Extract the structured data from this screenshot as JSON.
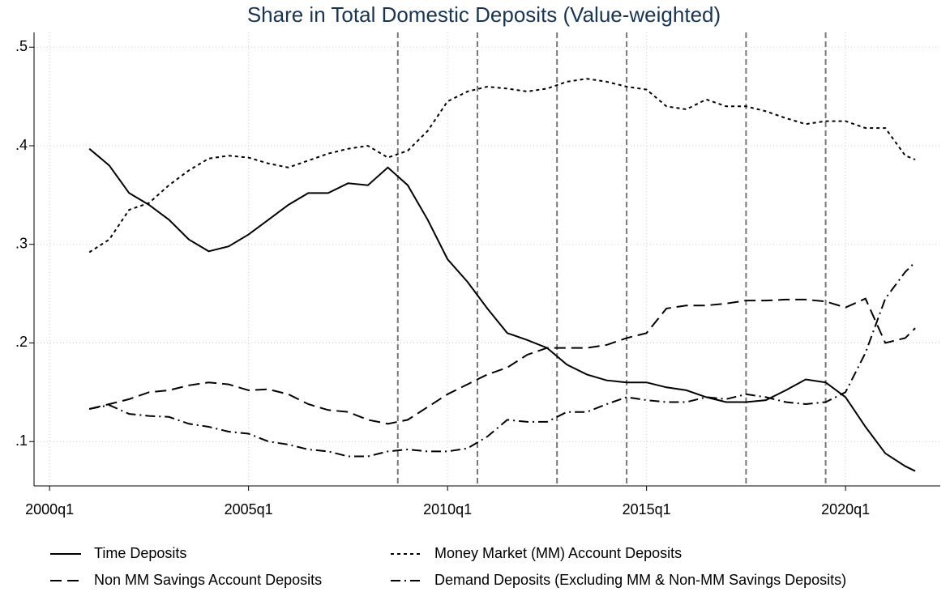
{
  "chart_data": {
    "type": "line",
    "title": "Share in Total Domestic Deposits (Value-weighted)",
    "x": [
      2001.0,
      2001.5,
      2002.0,
      2002.5,
      2003.0,
      2003.5,
      2004.0,
      2004.5,
      2005.0,
      2005.5,
      2006.0,
      2006.5,
      2007.0,
      2007.5,
      2008.0,
      2008.5,
      2009.0,
      2009.5,
      2010.0,
      2010.5,
      2011.0,
      2011.5,
      2012.0,
      2012.5,
      2013.0,
      2013.5,
      2014.0,
      2014.5,
      2015.0,
      2015.5,
      2016.0,
      2016.5,
      2017.0,
      2017.5,
      2018.0,
      2018.5,
      2019.0,
      2019.5,
      2020.0,
      2020.5,
      2021.0,
      2021.5,
      2021.75
    ],
    "series": [
      {
        "name": "Time Deposits",
        "color": "#000000",
        "style": "solid",
        "values": [
          0.397,
          0.38,
          0.352,
          0.34,
          0.325,
          0.305,
          0.293,
          0.298,
          0.31,
          0.325,
          0.34,
          0.352,
          0.352,
          0.362,
          0.36,
          0.378,
          0.36,
          0.325,
          0.285,
          0.262,
          0.235,
          0.21,
          0.203,
          0.195,
          0.178,
          0.168,
          0.162,
          0.16,
          0.16,
          0.155,
          0.152,
          0.145,
          0.14,
          0.14,
          0.142,
          0.152,
          0.163,
          0.16,
          0.145,
          0.115,
          0.088,
          0.075,
          0.07
        ]
      },
      {
        "name": "Money Market (MM) Account Deposits",
        "color": "#000000",
        "style": "short-dash",
        "values": [
          0.292,
          0.305,
          0.335,
          0.342,
          0.36,
          0.375,
          0.387,
          0.39,
          0.388,
          0.382,
          0.378,
          0.385,
          0.392,
          0.397,
          0.4,
          0.388,
          0.395,
          0.415,
          0.445,
          0.455,
          0.46,
          0.458,
          0.455,
          0.458,
          0.465,
          0.468,
          0.465,
          0.46,
          0.457,
          0.44,
          0.437,
          0.447,
          0.44,
          0.44,
          0.435,
          0.428,
          0.422,
          0.425,
          0.425,
          0.418,
          0.418,
          0.39,
          0.386
        ]
      },
      {
        "name": "Non MM Savings Account Deposits",
        "color": "#000000",
        "style": "long-dash",
        "values": [
          0.133,
          0.138,
          0.143,
          0.15,
          0.152,
          0.157,
          0.16,
          0.158,
          0.152,
          0.153,
          0.148,
          0.138,
          0.132,
          0.13,
          0.122,
          0.118,
          0.122,
          0.135,
          0.148,
          0.158,
          0.168,
          0.175,
          0.188,
          0.195,
          0.195,
          0.195,
          0.198,
          0.205,
          0.21,
          0.235,
          0.238,
          0.238,
          0.24,
          0.243,
          0.243,
          0.244,
          0.244,
          0.242,
          0.236,
          0.245,
          0.2,
          0.205,
          0.215
        ]
      },
      {
        "name": "Demand Deposits (Excluding MM & Non-MM Savings Deposits)",
        "color": "#000000",
        "style": "dash-dot",
        "values": [
          0.133,
          0.137,
          0.128,
          0.126,
          0.125,
          0.118,
          0.115,
          0.11,
          0.108,
          0.1,
          0.097,
          0.092,
          0.09,
          0.085,
          0.085,
          0.09,
          0.092,
          0.09,
          0.09,
          0.093,
          0.105,
          0.122,
          0.12,
          0.12,
          0.13,
          0.13,
          0.138,
          0.145,
          0.142,
          0.14,
          0.14,
          0.145,
          0.143,
          0.148,
          0.145,
          0.14,
          0.138,
          0.14,
          0.15,
          0.19,
          0.245,
          0.272,
          0.282
        ]
      }
    ],
    "xlim": [
      1999.61,
      2022.38
    ],
    "xticks": [
      {
        "value": 2000,
        "label": "2000q1"
      },
      {
        "value": 2005,
        "label": "2005q1"
      },
      {
        "value": 2010,
        "label": "2010q1"
      },
      {
        "value": 2015,
        "label": "2015q1"
      },
      {
        "value": 2020,
        "label": "2020q1"
      }
    ],
    "ylim": [
      0.055,
      0.515
    ],
    "yticks": [
      {
        "value": 0.1,
        "label": ".1"
      },
      {
        "value": 0.2,
        "label": ".2"
      },
      {
        "value": 0.3,
        "label": ".3"
      },
      {
        "value": 0.4,
        "label": ".4"
      },
      {
        "value": 0.5,
        "label": ".5"
      }
    ],
    "vlines": [
      2008.75,
      2010.75,
      2012.75,
      2014.5,
      2017.5,
      2019.5
    ],
    "grid": true,
    "legend": "bottom"
  }
}
